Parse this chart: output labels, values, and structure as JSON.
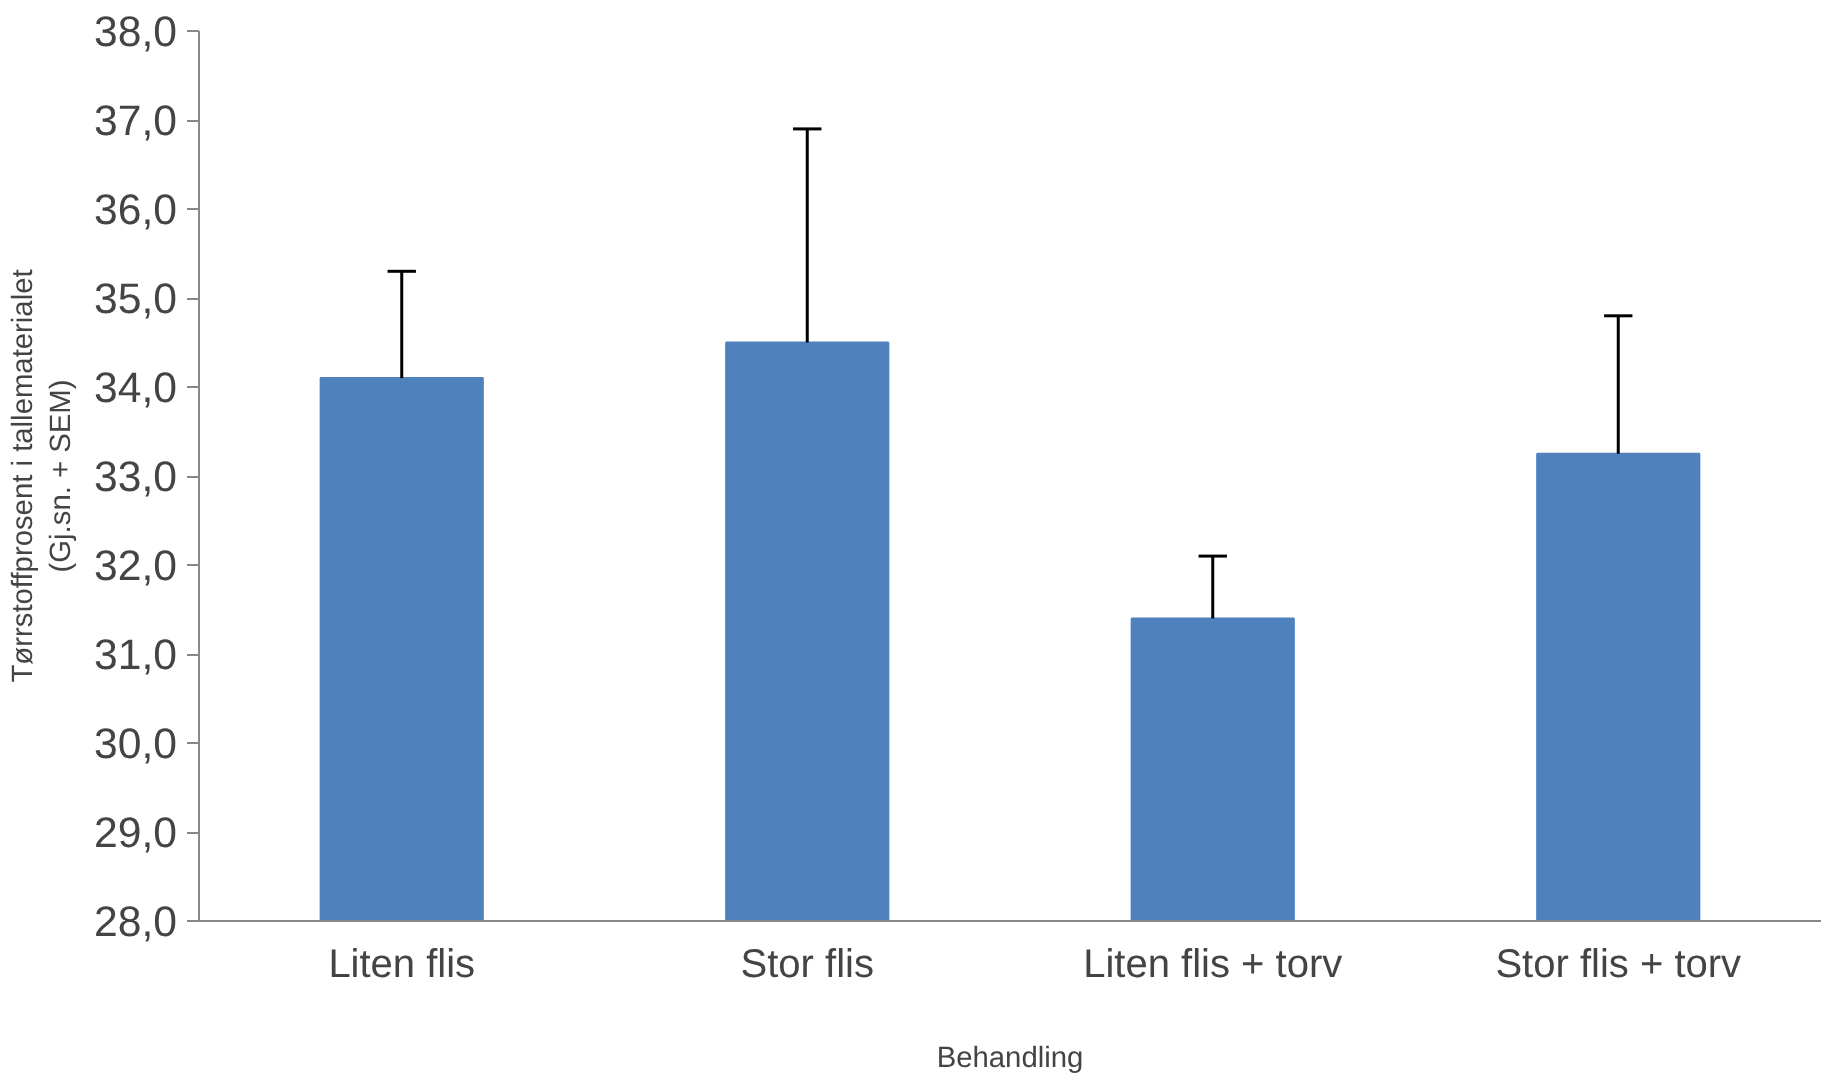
{
  "chart_data": {
    "type": "bar",
    "xlabel": "Behandling",
    "ylabel": "Tørrstoffprosent i tallematerialet\n(Gj.sn. + SEM)",
    "categories": [
      "Liten flis",
      "Stor flis",
      "Liten flis + torv",
      "Stor flis + torv"
    ],
    "values": [
      34.1,
      34.5,
      31.4,
      33.25
    ],
    "color": "#4f81bd",
    "errors": [
      [
        34.1,
        35.3
      ],
      [
        34.5,
        36.9
      ],
      [
        31.4,
        32.1
      ],
      [
        33.25,
        34.8
      ]
    ],
    "ylim": [
      28,
      38
    ],
    "yticks": [
      {
        "value": 28,
        "label": "28,0"
      },
      {
        "value": 29,
        "label": "29,0"
      },
      {
        "value": 30,
        "label": "30,0"
      },
      {
        "value": 31,
        "label": "31,0"
      },
      {
        "value": 32,
        "label": "32,0"
      },
      {
        "value": 33,
        "label": "33,0"
      },
      {
        "value": 34,
        "label": "34,0"
      },
      {
        "value": 35,
        "label": "35,0"
      },
      {
        "value": 36,
        "label": "36,0"
      },
      {
        "value": 37,
        "label": "37,0"
      },
      {
        "value": 38,
        "label": "38,0"
      }
    ],
    "grid": false
  }
}
